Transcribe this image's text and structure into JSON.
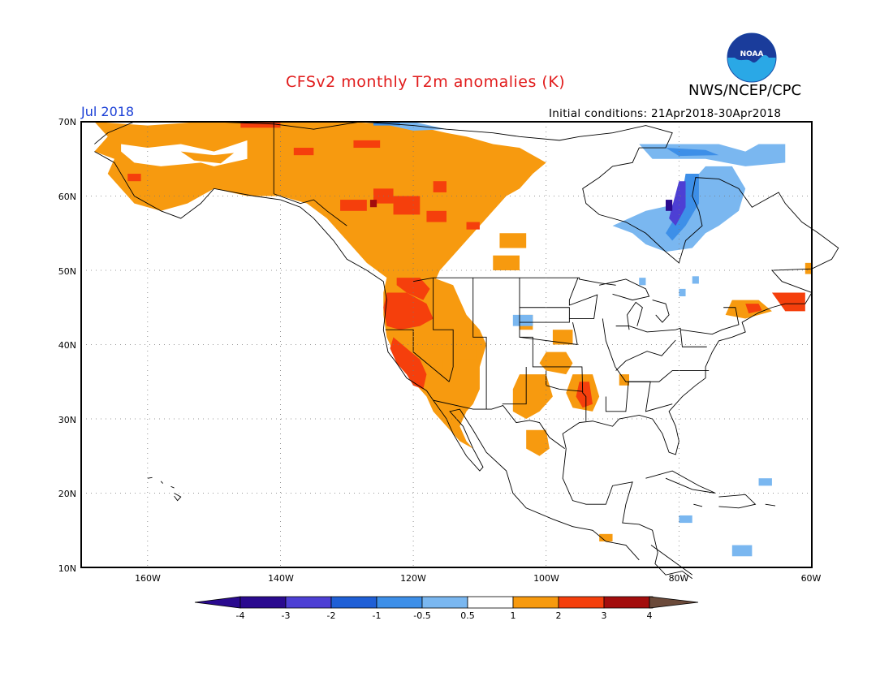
{
  "title": "CFSv2 monthly T2m anomalies (K)",
  "valid_month": "Jul 2018",
  "agency": "NWS/NCEP/CPC",
  "logo_text": "NOAA",
  "initial_conditions": "Initial conditions: 21Apr2018-30Apr2018",
  "colors": {
    "title": "#e11b1b",
    "month": "#1a3fd6",
    "neg4": "#2a0a8f",
    "neg3": "#4d3fd4",
    "neg2": "#1f5fd6",
    "neg1": "#3d8fe8",
    "neg05": "#7ab7f0",
    "neutral": "#ffffff",
    "pos05": "#f79a0f",
    "pos1": "#f53f0c",
    "pos2": "#a30d0d",
    "pos3": "#c9a08d",
    "pos4": "#6b4a3a"
  },
  "map": {
    "lat_labels": [
      "70N",
      "60N",
      "50N",
      "40N",
      "30N",
      "20N",
      "10N"
    ],
    "lon_labels": [
      "160W",
      "140W",
      "120W",
      "100W",
      "80W",
      "60W"
    ]
  },
  "colorbar": {
    "labels": [
      "-4",
      "-3",
      "-2",
      "-1",
      "-0.5",
      "0.5",
      "1",
      "2",
      "3",
      "4"
    ]
  }
}
